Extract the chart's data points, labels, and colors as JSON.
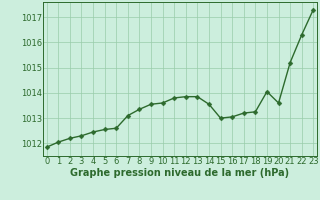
{
  "x": [
    0,
    1,
    2,
    3,
    4,
    5,
    6,
    7,
    8,
    9,
    10,
    11,
    12,
    13,
    14,
    15,
    16,
    17,
    18,
    19,
    20,
    21,
    22,
    23
  ],
  "y": [
    1011.85,
    1012.05,
    1012.2,
    1012.3,
    1012.45,
    1012.55,
    1012.6,
    1013.1,
    1013.35,
    1013.55,
    1013.6,
    1013.8,
    1013.85,
    1013.85,
    1013.55,
    1013.0,
    1013.05,
    1013.2,
    1013.25,
    1014.05,
    1013.6,
    1015.2,
    1016.3,
    1017.3
  ],
  "line_color": "#2d6a2d",
  "marker_color": "#2d6a2d",
  "bg_color": "#cceedd",
  "grid_color": "#99ccaa",
  "axis_color": "#2d6a2d",
  "xlabel": "Graphe pression niveau de la mer (hPa)",
  "ylim_min": 1011.5,
  "ylim_max": 1017.6,
  "yticks": [
    1012,
    1013,
    1014,
    1015,
    1016,
    1017
  ],
  "xticks": [
    0,
    1,
    2,
    3,
    4,
    5,
    6,
    7,
    8,
    9,
    10,
    11,
    12,
    13,
    14,
    15,
    16,
    17,
    18,
    19,
    20,
    21,
    22,
    23
  ],
  "xlabel_fontsize": 7.0,
  "tick_fontsize": 6.0,
  "marker_size": 2.5,
  "line_width": 1.0,
  "marker_style": "D"
}
